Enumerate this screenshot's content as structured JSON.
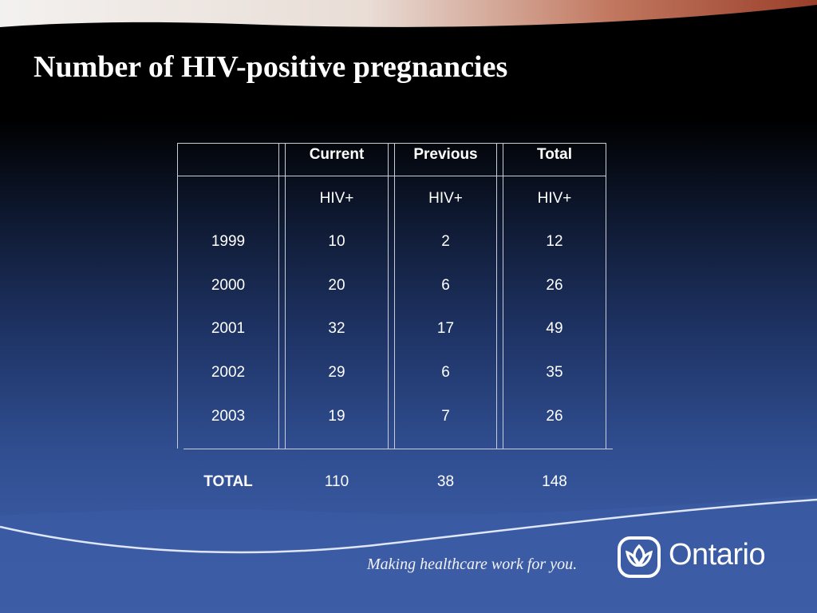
{
  "slide": {
    "title": "Number of HIV-positive pregnancies"
  },
  "table": {
    "columns": [
      "Current",
      "Previous",
      "Total"
    ],
    "subheader": [
      "HIV+",
      "HIV+",
      "HIV+"
    ],
    "rows": [
      {
        "year": "1999",
        "current": "10",
        "previous": "2",
        "total": "12"
      },
      {
        "year": "2000",
        "current": "20",
        "previous": "6",
        "total": "26"
      },
      {
        "year": "2001",
        "current": "32",
        "previous": "17",
        "total": "49"
      },
      {
        "year": "2002",
        "current": "29",
        "previous": "6",
        "total": "35"
      },
      {
        "year": "2003",
        "current": "19",
        "previous": "7",
        "total": "26"
      }
    ],
    "totals": {
      "label": "TOTAL",
      "current": "110",
      "previous": "38",
      "total": "148"
    }
  },
  "footer": {
    "tagline": "Making healthcare work for you.",
    "brand": "Ontario"
  },
  "colors": {
    "background_top": "#000000",
    "background_bottom": "#3e5ea8",
    "accent_swoosh": "#a04a33",
    "text": "#ffffff"
  },
  "icons": {
    "logo": "trillium-icon"
  }
}
